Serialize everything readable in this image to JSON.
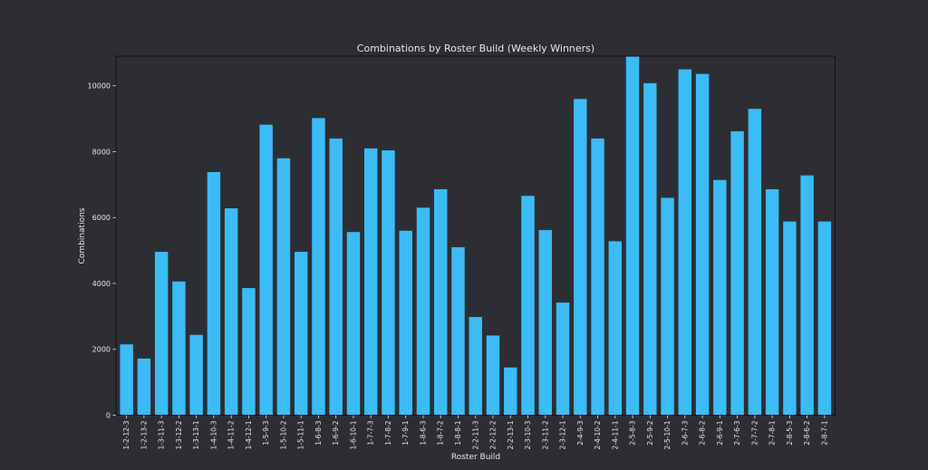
{
  "chart_data": {
    "type": "bar",
    "title": "Combinations by Roster Build (Weekly Winners)",
    "xlabel": "Roster Build",
    "ylabel": "Combinations",
    "ylim": [
      0,
      10900
    ],
    "yticks": [
      0,
      2000,
      4000,
      6000,
      8000,
      10000
    ],
    "grid": false,
    "legend": "none",
    "bar_color": "#3bbcf7",
    "categories": [
      "1-2-12-3",
      "1-2-13-2",
      "1-3-11-3",
      "1-3-12-2",
      "1-3-13-1",
      "1-4-10-3",
      "1-4-11-2",
      "1-4-12-1",
      "1-5-9-3",
      "1-5-10-2",
      "1-5-11-1",
      "1-6-8-3",
      "1-6-9-2",
      "1-6-10-1",
      "1-7-7-3",
      "1-7-8-2",
      "1-7-9-1",
      "1-8-6-3",
      "1-8-7-2",
      "1-8-8-1",
      "2-2-11-3",
      "2-2-12-2",
      "2-2-13-1",
      "2-3-10-3",
      "2-3-11-2",
      "2-3-12-1",
      "2-4-9-3",
      "2-4-10-2",
      "2-4-11-1",
      "2-5-8-3",
      "2-5-9-2",
      "2-5-10-1",
      "2-6-7-3",
      "2-6-8-2",
      "2-6-9-1",
      "2-7-6-3",
      "2-7-7-2",
      "2-7-8-1",
      "2-8-5-3",
      "2-8-6-2",
      "2-8-7-1"
    ],
    "values": [
      2150,
      1720,
      4960,
      4060,
      2440,
      7380,
      6280,
      3860,
      8820,
      7800,
      4960,
      9020,
      8400,
      5560,
      8100,
      8040,
      5600,
      6300,
      6860,
      5100,
      2980,
      2420,
      1450,
      6660,
      5620,
      3420,
      9600,
      8400,
      5280,
      10900,
      10080,
      6600,
      10500,
      10360,
      7140,
      8620,
      9300,
      6860,
      5880,
      7280,
      5880
    ]
  }
}
